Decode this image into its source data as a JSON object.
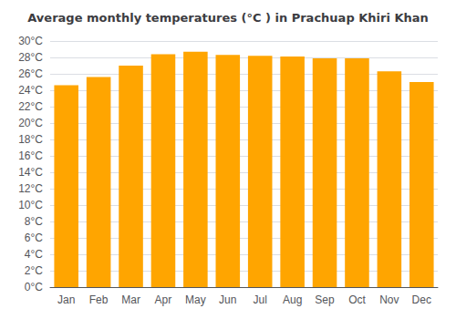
{
  "chart_data": {
    "type": "bar",
    "title": "Average monthly temperatures (°C ) in Prachuap Khiri Khan",
    "categories": [
      "Jan",
      "Feb",
      "Mar",
      "Apr",
      "May",
      "Jun",
      "Jul",
      "Aug",
      "Sep",
      "Oct",
      "Nov",
      "Dec"
    ],
    "values": [
      24.6,
      25.6,
      27.0,
      28.4,
      28.7,
      28.3,
      28.2,
      28.1,
      27.9,
      27.9,
      26.3,
      25.0
    ],
    "color": "#FFA500",
    "ylim": [
      0,
      30
    ],
    "yticks": [
      {
        "value": 0,
        "label": "0°C"
      },
      {
        "value": 2,
        "label": "2°C"
      },
      {
        "value": 4,
        "label": "4°C"
      },
      {
        "value": 6,
        "label": "6°C"
      },
      {
        "value": 8,
        "label": "8°C"
      },
      {
        "value": 10,
        "label": "10°C"
      },
      {
        "value": 12,
        "label": "12°C"
      },
      {
        "value": 14,
        "label": "14°C"
      },
      {
        "value": 16,
        "label": "16°C"
      },
      {
        "value": 18,
        "label": "18°C"
      },
      {
        "value": 20,
        "label": "20°C"
      },
      {
        "value": 22,
        "label": "22°C"
      },
      {
        "value": 24,
        "label": "24°C"
      },
      {
        "value": 26,
        "label": "26°C"
      },
      {
        "value": 28,
        "label": "28°C"
      },
      {
        "value": 30,
        "label": "30°C"
      }
    ],
    "grid": true
  }
}
